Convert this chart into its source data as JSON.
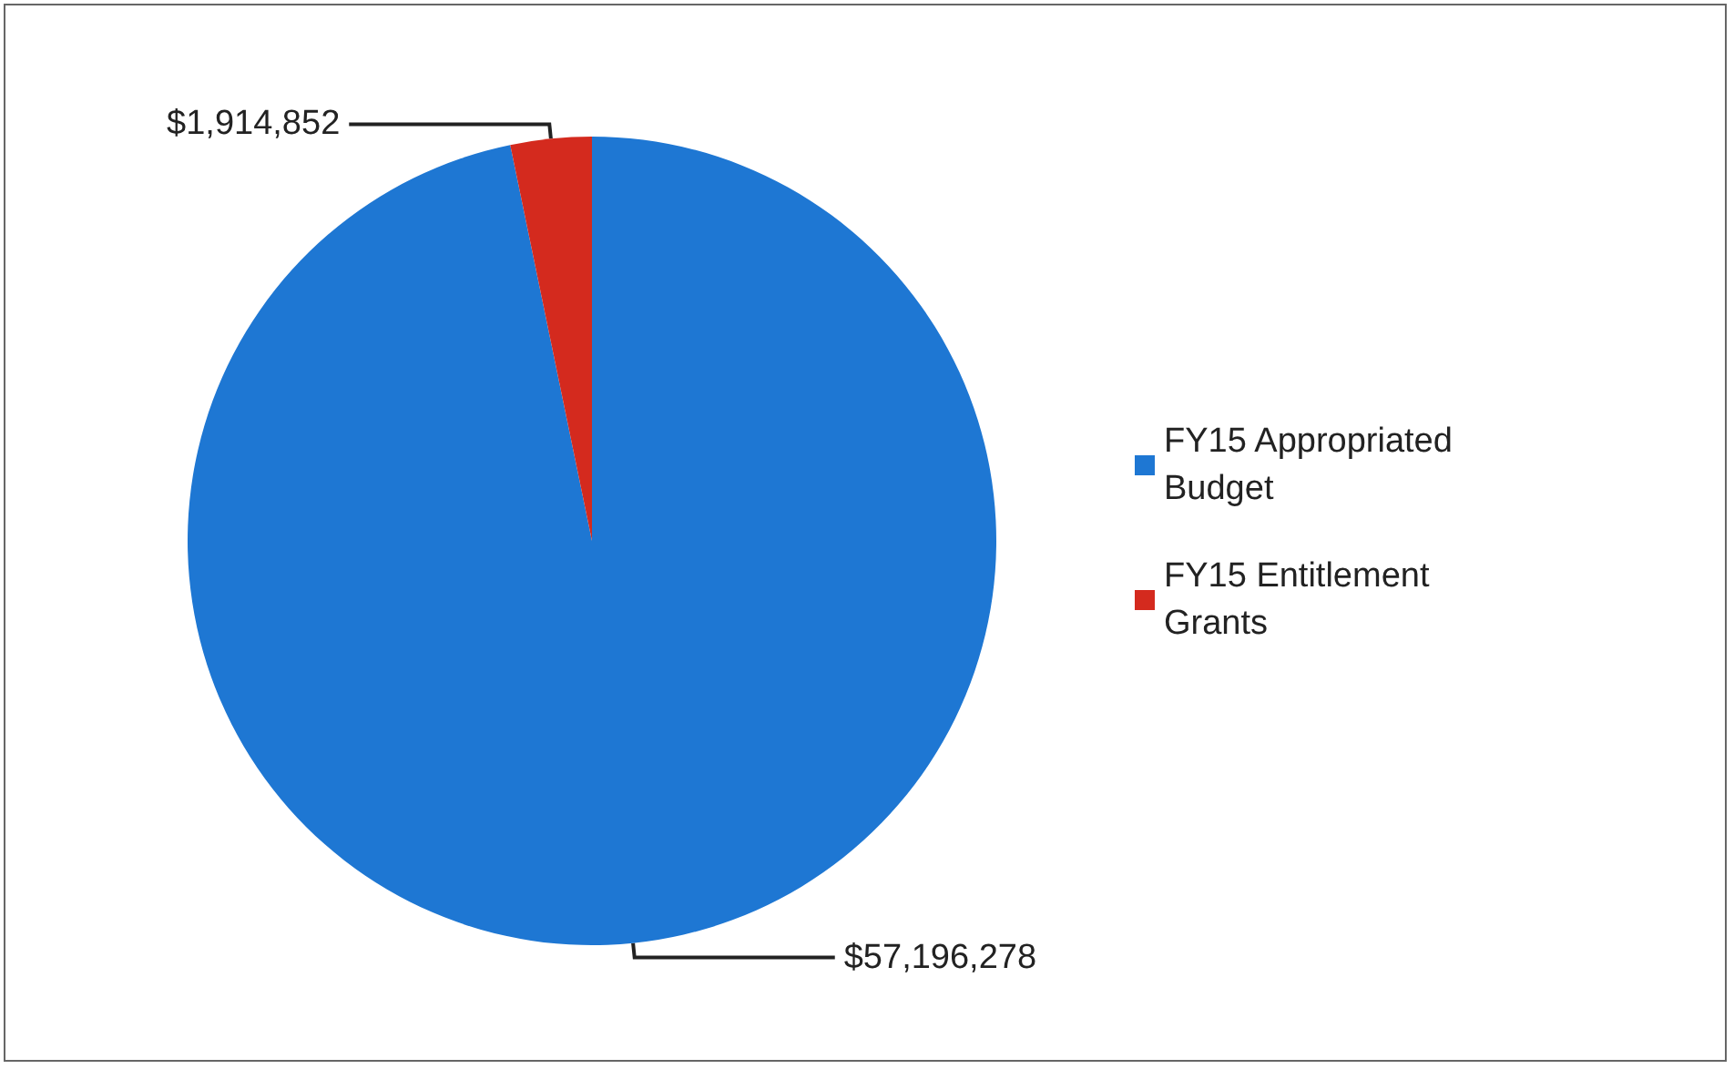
{
  "chart_data": {
    "type": "pie",
    "categories": [
      "FY15 Appropriated Budget",
      "FY15 Entitlement Grants"
    ],
    "values": [
      57196278,
      1914852
    ],
    "colors": [
      "#1e77d3",
      "#d42a1e"
    ],
    "value_labels": [
      "$57,196,278",
      "$1,914,852"
    ],
    "legend": "right"
  }
}
